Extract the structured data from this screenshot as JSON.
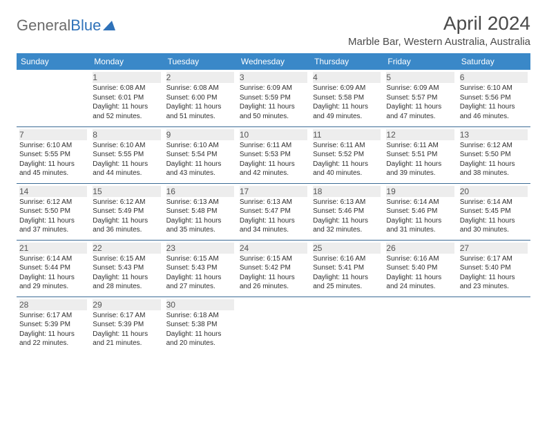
{
  "logo": {
    "text1": "General",
    "text2": "Blue"
  },
  "title": "April 2024",
  "location": "Marble Bar, Western Australia, Australia",
  "colors": {
    "header_bg": "#3a88c8",
    "header_fg": "#ffffff",
    "row_border": "#3a6a94",
    "shaded_bg": "#ededed",
    "title_color": "#4a4a4a",
    "logo_gray": "#6b6b6b",
    "logo_blue": "#2f72b9"
  },
  "weekdays": [
    "Sunday",
    "Monday",
    "Tuesday",
    "Wednesday",
    "Thursday",
    "Friday",
    "Saturday"
  ],
  "weeks": [
    [
      {
        "day": "",
        "sunrise": "",
        "sunset": "",
        "daylight": ""
      },
      {
        "day": "1",
        "sunrise": "Sunrise: 6:08 AM",
        "sunset": "Sunset: 6:01 PM",
        "daylight": "Daylight: 11 hours and 52 minutes."
      },
      {
        "day": "2",
        "sunrise": "Sunrise: 6:08 AM",
        "sunset": "Sunset: 6:00 PM",
        "daylight": "Daylight: 11 hours and 51 minutes."
      },
      {
        "day": "3",
        "sunrise": "Sunrise: 6:09 AM",
        "sunset": "Sunset: 5:59 PM",
        "daylight": "Daylight: 11 hours and 50 minutes."
      },
      {
        "day": "4",
        "sunrise": "Sunrise: 6:09 AM",
        "sunset": "Sunset: 5:58 PM",
        "daylight": "Daylight: 11 hours and 49 minutes."
      },
      {
        "day": "5",
        "sunrise": "Sunrise: 6:09 AM",
        "sunset": "Sunset: 5:57 PM",
        "daylight": "Daylight: 11 hours and 47 minutes."
      },
      {
        "day": "6",
        "sunrise": "Sunrise: 6:10 AM",
        "sunset": "Sunset: 5:56 PM",
        "daylight": "Daylight: 11 hours and 46 minutes."
      }
    ],
    [
      {
        "day": "7",
        "sunrise": "Sunrise: 6:10 AM",
        "sunset": "Sunset: 5:55 PM",
        "daylight": "Daylight: 11 hours and 45 minutes."
      },
      {
        "day": "8",
        "sunrise": "Sunrise: 6:10 AM",
        "sunset": "Sunset: 5:55 PM",
        "daylight": "Daylight: 11 hours and 44 minutes."
      },
      {
        "day": "9",
        "sunrise": "Sunrise: 6:10 AM",
        "sunset": "Sunset: 5:54 PM",
        "daylight": "Daylight: 11 hours and 43 minutes."
      },
      {
        "day": "10",
        "sunrise": "Sunrise: 6:11 AM",
        "sunset": "Sunset: 5:53 PM",
        "daylight": "Daylight: 11 hours and 42 minutes."
      },
      {
        "day": "11",
        "sunrise": "Sunrise: 6:11 AM",
        "sunset": "Sunset: 5:52 PM",
        "daylight": "Daylight: 11 hours and 40 minutes."
      },
      {
        "day": "12",
        "sunrise": "Sunrise: 6:11 AM",
        "sunset": "Sunset: 5:51 PM",
        "daylight": "Daylight: 11 hours and 39 minutes."
      },
      {
        "day": "13",
        "sunrise": "Sunrise: 6:12 AM",
        "sunset": "Sunset: 5:50 PM",
        "daylight": "Daylight: 11 hours and 38 minutes."
      }
    ],
    [
      {
        "day": "14",
        "sunrise": "Sunrise: 6:12 AM",
        "sunset": "Sunset: 5:50 PM",
        "daylight": "Daylight: 11 hours and 37 minutes."
      },
      {
        "day": "15",
        "sunrise": "Sunrise: 6:12 AM",
        "sunset": "Sunset: 5:49 PM",
        "daylight": "Daylight: 11 hours and 36 minutes."
      },
      {
        "day": "16",
        "sunrise": "Sunrise: 6:13 AM",
        "sunset": "Sunset: 5:48 PM",
        "daylight": "Daylight: 11 hours and 35 minutes."
      },
      {
        "day": "17",
        "sunrise": "Sunrise: 6:13 AM",
        "sunset": "Sunset: 5:47 PM",
        "daylight": "Daylight: 11 hours and 34 minutes."
      },
      {
        "day": "18",
        "sunrise": "Sunrise: 6:13 AM",
        "sunset": "Sunset: 5:46 PM",
        "daylight": "Daylight: 11 hours and 32 minutes."
      },
      {
        "day": "19",
        "sunrise": "Sunrise: 6:14 AM",
        "sunset": "Sunset: 5:46 PM",
        "daylight": "Daylight: 11 hours and 31 minutes."
      },
      {
        "day": "20",
        "sunrise": "Sunrise: 6:14 AM",
        "sunset": "Sunset: 5:45 PM",
        "daylight": "Daylight: 11 hours and 30 minutes."
      }
    ],
    [
      {
        "day": "21",
        "sunrise": "Sunrise: 6:14 AM",
        "sunset": "Sunset: 5:44 PM",
        "daylight": "Daylight: 11 hours and 29 minutes."
      },
      {
        "day": "22",
        "sunrise": "Sunrise: 6:15 AM",
        "sunset": "Sunset: 5:43 PM",
        "daylight": "Daylight: 11 hours and 28 minutes."
      },
      {
        "day": "23",
        "sunrise": "Sunrise: 6:15 AM",
        "sunset": "Sunset: 5:43 PM",
        "daylight": "Daylight: 11 hours and 27 minutes."
      },
      {
        "day": "24",
        "sunrise": "Sunrise: 6:15 AM",
        "sunset": "Sunset: 5:42 PM",
        "daylight": "Daylight: 11 hours and 26 minutes."
      },
      {
        "day": "25",
        "sunrise": "Sunrise: 6:16 AM",
        "sunset": "Sunset: 5:41 PM",
        "daylight": "Daylight: 11 hours and 25 minutes."
      },
      {
        "day": "26",
        "sunrise": "Sunrise: 6:16 AM",
        "sunset": "Sunset: 5:40 PM",
        "daylight": "Daylight: 11 hours and 24 minutes."
      },
      {
        "day": "27",
        "sunrise": "Sunrise: 6:17 AM",
        "sunset": "Sunset: 5:40 PM",
        "daylight": "Daylight: 11 hours and 23 minutes."
      }
    ],
    [
      {
        "day": "28",
        "sunrise": "Sunrise: 6:17 AM",
        "sunset": "Sunset: 5:39 PM",
        "daylight": "Daylight: 11 hours and 22 minutes."
      },
      {
        "day": "29",
        "sunrise": "Sunrise: 6:17 AM",
        "sunset": "Sunset: 5:39 PM",
        "daylight": "Daylight: 11 hours and 21 minutes."
      },
      {
        "day": "30",
        "sunrise": "Sunrise: 6:18 AM",
        "sunset": "Sunset: 5:38 PM",
        "daylight": "Daylight: 11 hours and 20 minutes."
      },
      {
        "day": "",
        "sunrise": "",
        "sunset": "",
        "daylight": ""
      },
      {
        "day": "",
        "sunrise": "",
        "sunset": "",
        "daylight": ""
      },
      {
        "day": "",
        "sunrise": "",
        "sunset": "",
        "daylight": ""
      },
      {
        "day": "",
        "sunrise": "",
        "sunset": "",
        "daylight": ""
      }
    ]
  ]
}
